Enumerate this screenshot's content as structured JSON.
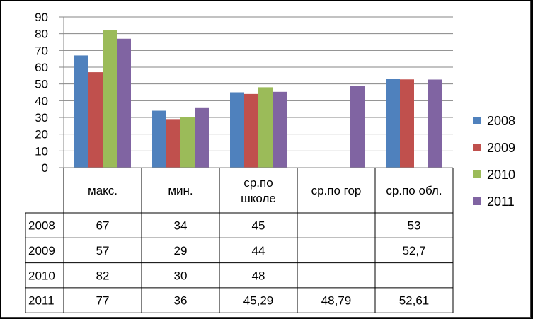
{
  "chart_data": {
    "type": "bar",
    "categories": [
      [
        "макс."
      ],
      [
        "мин."
      ],
      [
        "ср.по",
        "школе"
      ],
      [
        "ср.по гор"
      ],
      [
        "ср.по обл."
      ]
    ],
    "ylim": [
      0,
      90
    ],
    "yticks": [
      0,
      10,
      20,
      30,
      40,
      50,
      60,
      70,
      80,
      90
    ],
    "grid": true,
    "legend_position": "right",
    "series": [
      {
        "name": "2008",
        "color": "#4F81BD",
        "values": [
          67,
          34,
          45,
          null,
          53
        ],
        "labels": [
          "67",
          "34",
          "45",
          "",
          "53"
        ]
      },
      {
        "name": "2009",
        "color": "#C0504D",
        "values": [
          57,
          29,
          44,
          null,
          52.7
        ],
        "labels": [
          "57",
          "29",
          "44",
          "",
          "52,7"
        ]
      },
      {
        "name": "2010",
        "color": "#9BBB59",
        "values": [
          82,
          30,
          48,
          null,
          null
        ],
        "labels": [
          "82",
          "30",
          "48",
          "",
          ""
        ]
      },
      {
        "name": "2011",
        "color": "#8064A2",
        "values": [
          77,
          36,
          45.29,
          48.79,
          52.61
        ],
        "labels": [
          "77",
          "36",
          "45,29",
          "48,79",
          "52,61"
        ]
      }
    ]
  }
}
